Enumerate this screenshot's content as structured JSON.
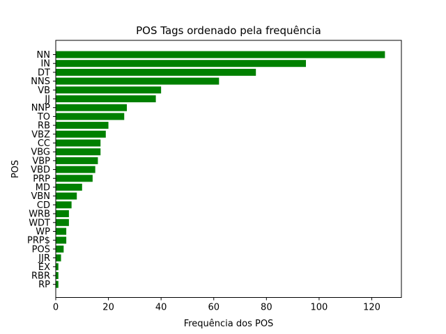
{
  "chart_data": {
    "type": "bar",
    "orientation": "horizontal",
    "title": "POS Tags ordenado pela frequência",
    "xlabel": "Frequência dos POS",
    "ylabel": "POS",
    "categories": [
      "NN",
      "IN",
      "DT",
      "NNS",
      "VB",
      "JJ",
      "NNP",
      "TO",
      "RB",
      "VBZ",
      "CC",
      "VBG",
      "VBP",
      "VBD",
      "PRP",
      "MD",
      "VBN",
      "CD",
      "WRB",
      "WDT",
      "WP",
      "PRP$",
      "POS",
      "JJR",
      "EX",
      "RBR",
      "RP"
    ],
    "values": [
      125,
      95,
      76,
      62,
      40,
      38,
      27,
      26,
      20,
      19,
      17,
      17,
      16,
      15,
      14,
      10,
      8,
      6,
      5,
      5,
      4,
      4,
      3,
      2,
      1,
      1,
      1
    ],
    "xlim": [
      0,
      131.25
    ],
    "xticks": [
      0,
      20,
      40,
      60,
      80,
      100,
      120
    ],
    "grid": false,
    "bar_color": "#008000"
  }
}
